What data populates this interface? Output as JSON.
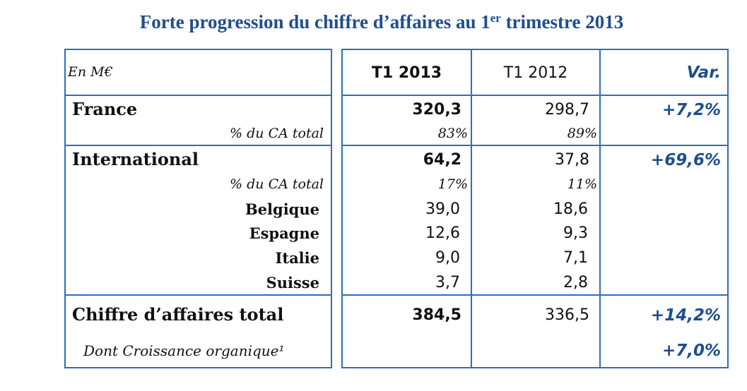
{
  "title": {
    "text": "Forte progression du chiffre d’affaires au 1",
    "sup": "er",
    "end": " trimestre 2013"
  },
  "header": {
    "unit": "En M€",
    "col1": "T1 2013",
    "col2": "T1 2012",
    "col3": "Var."
  },
  "rows": {
    "france": {
      "label": "France",
      "v2013": "320,3",
      "v2012": "298,7",
      "var": "+7,2%"
    },
    "france_pct": {
      "label": "% du CA total",
      "v2013": "83%",
      "v2012": "89%"
    },
    "international": {
      "label": "International",
      "v2013": "64,2",
      "v2012": "37,8",
      "var": "+69,6%"
    },
    "international_pct": {
      "label": "% du CA total",
      "v2013": "17%",
      "v2012": "11%"
    },
    "belgique": {
      "label": "Belgique",
      "v2013": "39,0",
      "v2012": "18,6"
    },
    "espagne": {
      "label": "Espagne",
      "v2013": "12,6",
      "v2012": "9,3"
    },
    "italie": {
      "label": "Italie",
      "v2013": "9,0",
      "v2012": "7,1"
    },
    "suisse": {
      "label": "Suisse",
      "v2013": "3,7",
      "v2012": "2,8"
    },
    "total": {
      "label": "Chiffre d’affaires total",
      "v2013": "384,5",
      "v2012": "336,5",
      "var": "+14,2%"
    },
    "organic": {
      "label": "Dont Croissance organique¹",
      "var": "+7,0%"
    }
  },
  "colors": {
    "border": "#2e6fb5",
    "title": "#1f4e8c",
    "variation": "#1f4e8c"
  }
}
